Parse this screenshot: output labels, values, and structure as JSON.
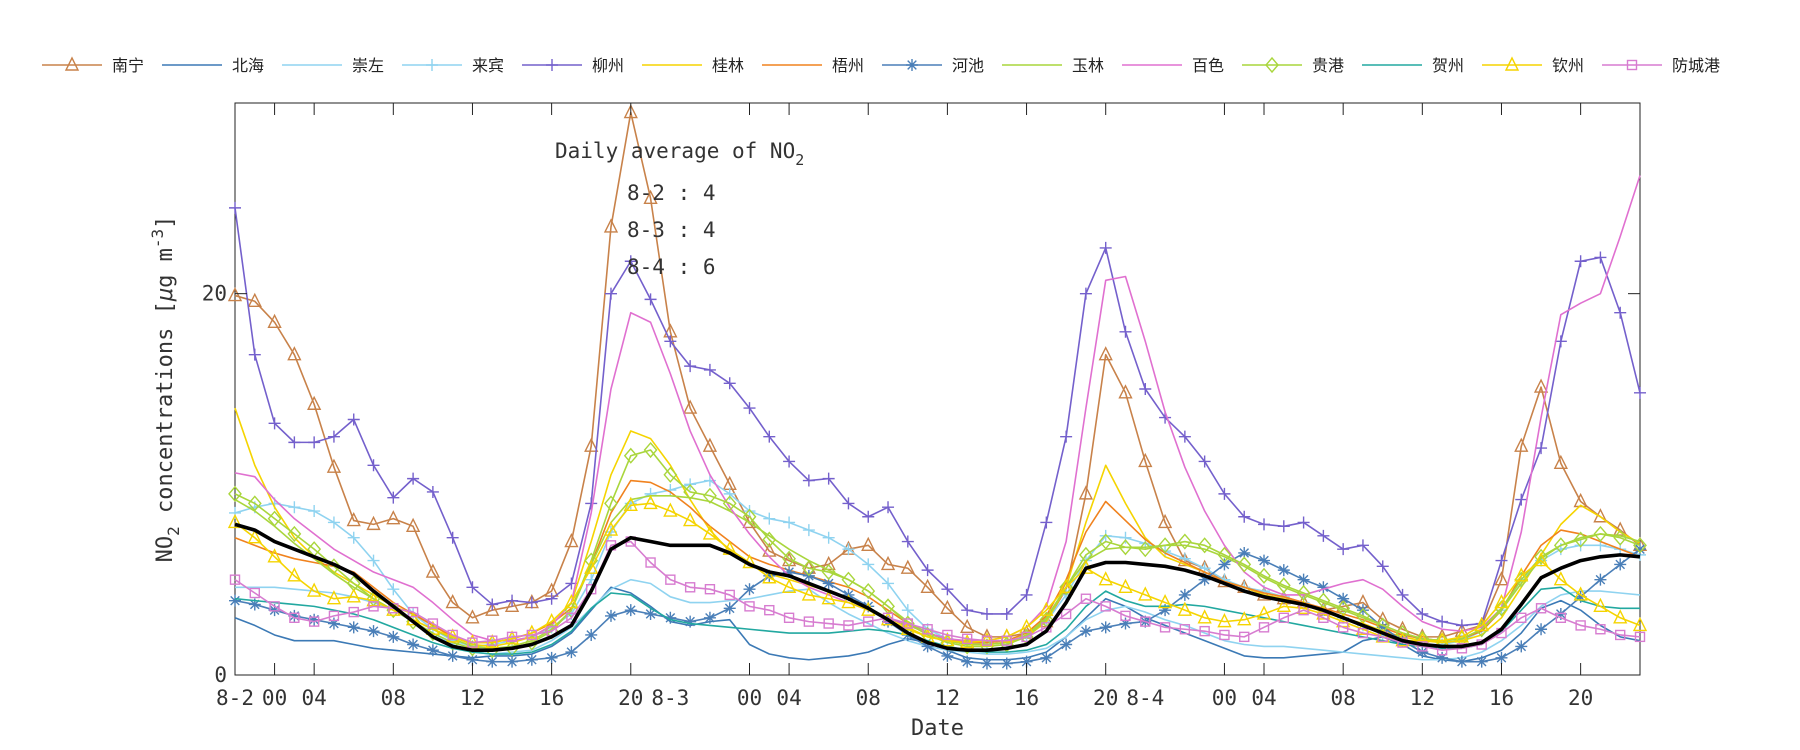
{
  "chart_data": {
    "type": "line",
    "xlabel": "Date",
    "ylabel_main": "NO",
    "ylabel_sub": "2",
    "ylabel_rest": " concentrations [",
    "ylabel_mu": "μ",
    "ylabel_unit": "g m",
    "ylabel_sup": "-3",
    "ylabel_close": "]",
    "ylim": [
      0,
      30
    ],
    "xlim": [
      0,
      71
    ],
    "yticks": [
      {
        "v": 0,
        "label": "0"
      },
      {
        "v": 20,
        "label": "20"
      }
    ],
    "xticks": [
      {
        "v": 0,
        "label": "8-2"
      },
      {
        "v": 4,
        "label": "04"
      },
      {
        "v": 8,
        "label": "08"
      },
      {
        "v": 12,
        "label": "12"
      },
      {
        "v": 16,
        "label": "16"
      },
      {
        "v": 20,
        "label": "20"
      },
      {
        "v": 28,
        "label": "04"
      },
      {
        "v": 32,
        "label": "08"
      },
      {
        "v": 36,
        "label": "12"
      },
      {
        "v": 40,
        "label": "16"
      },
      {
        "v": 44,
        "label": "20"
      },
      {
        "v": 52,
        "label": "04"
      },
      {
        "v": 56,
        "label": "08"
      },
      {
        "v": 60,
        "label": "12"
      },
      {
        "v": 64,
        "label": "16"
      },
      {
        "v": 68,
        "label": "20"
      }
    ],
    "xtick_extra": [
      {
        "v": 2,
        "label": "00"
      },
      {
        "v": 26,
        "label": "00"
      },
      {
        "v": 50,
        "label": "00"
      }
    ],
    "day_labels": [
      {
        "v": 22,
        "label": "8-3"
      },
      {
        "v": 46,
        "label": "8-4"
      }
    ],
    "annotation": {
      "title": "Daily average of NO",
      "title_sub": "2",
      "lines": [
        "8-2 : 4",
        "8-3 : 4",
        "8-4 : 6"
      ]
    },
    "series": [
      {
        "name": "南宁",
        "color": "#C8824A",
        "marker": "triangle",
        "values": [
          19.9,
          19.6,
          18.5,
          16.8,
          14.2,
          10.9,
          8.1,
          7.9,
          8.2,
          7.8,
          5.4,
          3.8,
          3.0,
          3.4,
          3.6,
          3.8,
          4.4,
          7.0,
          12.0,
          23.5,
          29.5,
          25.0,
          18.0,
          14.0,
          12.0,
          10.0,
          8.0,
          6.5,
          6.0,
          5.6,
          5.8,
          6.6,
          6.8,
          5.8,
          5.6,
          4.6,
          3.5,
          2.5,
          2.0,
          2.0,
          2.2,
          2.8,
          4.5,
          9.5,
          16.8,
          14.8,
          11.2,
          8.0,
          6.0,
          5.6,
          4.9,
          4.6,
          4.2,
          4.0,
          3.8,
          3.4,
          3.6,
          3.8,
          2.9,
          2.4,
          2.0,
          2.0,
          2.3,
          2.6,
          5.0,
          12.0,
          15.1,
          11.1,
          9.1,
          8.3,
          7.6,
          6.8
        ]
      },
      {
        "name": "北海",
        "color": "#3B79B5",
        "marker": "none",
        "values": [
          3.0,
          2.6,
          2.1,
          1.8,
          1.8,
          1.8,
          1.6,
          1.4,
          1.3,
          1.2,
          1.1,
          1.0,
          0.9,
          1.0,
          1.0,
          1.1,
          1.5,
          2.2,
          3.4,
          4.6,
          4.3,
          3.6,
          2.8,
          2.6,
          2.8,
          2.9,
          1.6,
          1.1,
          0.9,
          0.8,
          0.9,
          1.0,
          1.2,
          1.6,
          1.9,
          1.7,
          1.3,
          0.9,
          0.8,
          0.8,
          0.9,
          1.2,
          2.0,
          3.0,
          4.0,
          3.6,
          3.0,
          2.6,
          2.2,
          1.8,
          1.4,
          1.0,
          0.9,
          0.9,
          1.0,
          1.1,
          1.2,
          1.8,
          2.0,
          1.6,
          1.0,
          0.8,
          0.7,
          0.9,
          1.3,
          2.2,
          3.5,
          3.9,
          3.4,
          2.6,
          2.0,
          1.8
        ]
      },
      {
        "name": "崇左",
        "color": "#8FD3F0",
        "marker": "none",
        "values": [
          4.6,
          4.6,
          4.6,
          4.5,
          4.4,
          4.3,
          4.1,
          3.8,
          3.4,
          2.8,
          2.2,
          1.6,
          1.2,
          1.1,
          1.2,
          1.3,
          1.8,
          2.5,
          3.5,
          4.5,
          5.0,
          4.8,
          4.1,
          3.8,
          3.8,
          3.9,
          4.0,
          4.2,
          4.4,
          4.5,
          3.8,
          3.2,
          2.7,
          2.2,
          1.8,
          1.5,
          1.3,
          1.2,
          1.1,
          1.1,
          1.2,
          1.4,
          2.0,
          2.9,
          3.4,
          3.6,
          3.3,
          2.9,
          2.6,
          2.2,
          1.8,
          1.6,
          1.5,
          1.5,
          1.4,
          1.3,
          1.2,
          1.1,
          1.0,
          0.9,
          0.8,
          0.8,
          0.9,
          1.2,
          1.8,
          2.6,
          3.6,
          4.2,
          4.4,
          4.4,
          4.3,
          4.2
        ]
      },
      {
        "name": "来宾",
        "color": "#8FD3F0",
        "marker": "plus",
        "values": [
          8.5,
          8.8,
          9.0,
          8.8,
          8.6,
          8.0,
          7.2,
          6.0,
          4.5,
          3.2,
          2.4,
          1.8,
          1.5,
          1.6,
          1.8,
          2.0,
          2.5,
          3.2,
          5.0,
          7.5,
          9.0,
          9.5,
          9.7,
          10.0,
          10.2,
          9.5,
          8.6,
          8.2,
          8.0,
          7.6,
          7.2,
          6.6,
          5.8,
          4.8,
          3.4,
          2.4,
          1.9,
          1.7,
          1.6,
          1.7,
          2.0,
          2.8,
          4.2,
          6.0,
          7.3,
          7.2,
          6.9,
          6.5,
          6.1,
          5.6,
          5.0,
          4.6,
          4.4,
          4.1,
          3.8,
          3.4,
          3.0,
          2.6,
          2.1,
          1.8,
          1.6,
          1.6,
          1.8,
          2.3,
          3.4,
          5.0,
          6.0,
          6.6,
          6.8,
          6.8,
          6.6,
          6.3
        ]
      },
      {
        "name": "柳州",
        "color": "#7460CC",
        "marker": "plus",
        "values": [
          24.5,
          16.8,
          13.2,
          12.2,
          12.2,
          12.5,
          13.4,
          11.0,
          9.3,
          10.3,
          9.6,
          7.2,
          4.6,
          3.7,
          3.9,
          3.8,
          4.0,
          4.8,
          9.0,
          20.0,
          21.7,
          19.7,
          17.5,
          16.2,
          16.0,
          15.3,
          14.0,
          12.5,
          11.2,
          10.2,
          10.3,
          9.0,
          8.3,
          8.8,
          7.0,
          5.5,
          4.5,
          3.4,
          3.2,
          3.2,
          4.2,
          8.0,
          12.5,
          20.0,
          22.4,
          18.0,
          15.0,
          13.5,
          12.5,
          11.2,
          9.5,
          8.3,
          7.9,
          7.8,
          8.0,
          7.3,
          6.6,
          6.8,
          5.7,
          4.2,
          3.2,
          2.8,
          2.6,
          2.7,
          6.0,
          9.2,
          11.9,
          17.5,
          21.7,
          21.9,
          19.0,
          14.8
        ]
      },
      {
        "name": "桂林",
        "color": "#F5D400",
        "marker": "none",
        "values": [
          14.0,
          11.0,
          8.8,
          7.2,
          6.2,
          5.4,
          4.8,
          4.2,
          3.6,
          3.2,
          2.6,
          2.0,
          1.6,
          1.5,
          1.7,
          2.0,
          2.6,
          3.8,
          7.0,
          10.5,
          12.8,
          12.4,
          11.0,
          9.2,
          7.6,
          6.5,
          5.8,
          5.3,
          5.0,
          4.7,
          4.4,
          4.0,
          3.5,
          3.0,
          2.5,
          2.0,
          1.8,
          1.6,
          1.6,
          1.7,
          2.0,
          2.8,
          4.6,
          8.0,
          11.0,
          9.0,
          7.2,
          6.2,
          5.8,
          5.4,
          4.9,
          4.6,
          4.2,
          4.0,
          3.7,
          3.3,
          3.0,
          2.7,
          2.3,
          2.0,
          1.8,
          1.7,
          1.8,
          2.1,
          3.0,
          4.6,
          6.3,
          7.9,
          8.9,
          8.3,
          7.5,
          6.9
        ]
      },
      {
        "name": "梧州",
        "color": "#F0821E",
        "marker": "none",
        "values": [
          7.2,
          6.8,
          6.4,
          6.1,
          5.9,
          5.7,
          5.4,
          4.6,
          3.8,
          3.2,
          2.6,
          2.0,
          1.7,
          1.7,
          1.9,
          2.2,
          2.7,
          3.5,
          5.8,
          8.5,
          10.2,
          10.1,
          9.6,
          8.8,
          7.8,
          7.0,
          6.2,
          5.8,
          5.5,
          5.2,
          4.9,
          4.6,
          4.1,
          3.4,
          2.7,
          2.2,
          1.9,
          1.7,
          1.7,
          1.8,
          2.2,
          3.1,
          5.0,
          7.5,
          9.1,
          8.1,
          7.1,
          6.4,
          5.9,
          5.4,
          4.9,
          4.6,
          4.3,
          4.1,
          3.8,
          3.5,
          3.2,
          2.9,
          2.5,
          2.1,
          1.9,
          1.8,
          1.9,
          2.3,
          3.4,
          5.2,
          6.8,
          7.6,
          7.4,
          7.0,
          6.6,
          6.2
        ]
      },
      {
        "name": "河池",
        "color": "#4A7FB8",
        "marker": "star",
        "values": [
          3.9,
          3.7,
          3.4,
          3.1,
          2.9,
          2.7,
          2.5,
          2.3,
          2.0,
          1.6,
          1.3,
          1.0,
          0.8,
          0.7,
          0.7,
          0.8,
          0.9,
          1.2,
          2.1,
          3.1,
          3.4,
          3.2,
          3.0,
          2.8,
          3.0,
          3.5,
          4.5,
          5.2,
          5.4,
          5.2,
          4.8,
          4.2,
          3.6,
          2.8,
          2.1,
          1.5,
          1.0,
          0.7,
          0.6,
          0.6,
          0.7,
          0.9,
          1.6,
          2.3,
          2.5,
          2.7,
          2.8,
          3.4,
          4.2,
          5.0,
          5.8,
          6.4,
          6.0,
          5.5,
          5.0,
          4.6,
          4.0,
          3.4,
          2.5,
          1.8,
          1.2,
          0.9,
          0.7,
          0.7,
          0.9,
          1.5,
          2.4,
          3.2,
          4.1,
          5.0,
          5.8,
          6.6
        ]
      },
      {
        "name": "玉林",
        "color": "#A9D63C",
        "marker": "none",
        "values": [
          9.2,
          8.6,
          7.8,
          6.9,
          6.1,
          5.3,
          4.6,
          4.0,
          3.4,
          2.9,
          2.4,
          1.9,
          1.5,
          1.4,
          1.5,
          1.8,
          2.4,
          3.4,
          5.8,
          8.0,
          9.2,
          9.4,
          9.4,
          9.3,
          9.1,
          8.6,
          8.0,
          7.3,
          6.6,
          6.0,
          5.5,
          5.0,
          4.4,
          3.6,
          2.8,
          2.2,
          1.8,
          1.6,
          1.6,
          1.7,
          2.1,
          3.0,
          4.6,
          6.0,
          6.6,
          6.7,
          6.7,
          6.8,
          6.8,
          6.6,
          6.2,
          5.7,
          5.1,
          4.6,
          4.2,
          3.8,
          3.4,
          3.0,
          2.6,
          2.2,
          1.9,
          1.8,
          1.9,
          2.4,
          3.4,
          4.8,
          6.1,
          6.8,
          7.2,
          7.4,
          7.3,
          7.0
        ]
      },
      {
        "name": "百色",
        "color": "#E070D0",
        "marker": "none",
        "values": [
          10.6,
          10.4,
          9.2,
          8.2,
          7.4,
          6.6,
          6.0,
          5.4,
          5.0,
          4.6,
          3.8,
          2.9,
          2.1,
          1.8,
          1.8,
          2.0,
          2.6,
          3.8,
          8.5,
          15.0,
          19.0,
          18.5,
          15.8,
          12.8,
          10.5,
          8.8,
          7.4,
          6.2,
          5.2,
          4.6,
          4.2,
          3.8,
          3.4,
          3.0,
          2.6,
          2.2,
          1.9,
          1.8,
          1.8,
          2.0,
          2.5,
          3.6,
          7.0,
          14.0,
          20.7,
          20.9,
          17.5,
          13.8,
          10.9,
          8.6,
          6.8,
          5.4,
          4.6,
          4.2,
          4.2,
          4.5,
          4.8,
          5.0,
          4.5,
          3.6,
          2.8,
          2.4,
          2.3,
          2.5,
          3.5,
          7.5,
          13.5,
          18.9,
          19.5,
          20.0,
          23.0,
          26.2
        ]
      },
      {
        "name": "贵港",
        "color": "#A9D63C",
        "marker": "diamond",
        "values": [
          9.5,
          9.0,
          8.2,
          7.4,
          6.6,
          5.7,
          4.8,
          4.0,
          3.4,
          2.8,
          2.2,
          1.7,
          1.4,
          1.3,
          1.4,
          1.7,
          2.3,
          3.4,
          6.0,
          9.0,
          11.5,
          11.8,
          10.5,
          9.6,
          9.4,
          9.0,
          8.3,
          7.1,
          6.1,
          5.6,
          5.4,
          5.0,
          4.4,
          3.6,
          2.7,
          2.1,
          1.7,
          1.5,
          1.5,
          1.6,
          2.0,
          2.9,
          4.6,
          6.3,
          7.0,
          6.7,
          6.6,
          6.8,
          7.0,
          6.8,
          6.3,
          5.8,
          5.2,
          4.7,
          4.3,
          3.9,
          3.5,
          3.1,
          2.6,
          2.2,
          1.9,
          1.8,
          1.9,
          2.4,
          3.5,
          5.0,
          6.2,
          6.8,
          7.1,
          7.4,
          7.2,
          6.8
        ]
      },
      {
        "name": "贺州",
        "color": "#22A8A0",
        "marker": "none",
        "values": [
          4.0,
          3.9,
          3.8,
          3.7,
          3.6,
          3.4,
          3.2,
          2.9,
          2.5,
          2.1,
          1.7,
          1.4,
          1.2,
          1.1,
          1.1,
          1.2,
          1.6,
          2.3,
          3.5,
          4.3,
          4.2,
          3.5,
          2.9,
          2.7,
          2.6,
          2.5,
          2.4,
          2.3,
          2.2,
          2.2,
          2.2,
          2.3,
          2.4,
          2.3,
          2.1,
          1.8,
          1.5,
          1.3,
          1.2,
          1.2,
          1.3,
          1.6,
          2.4,
          3.6,
          4.4,
          3.9,
          3.6,
          3.6,
          3.7,
          3.6,
          3.4,
          3.2,
          3.0,
          2.8,
          2.6,
          2.4,
          2.2,
          2.0,
          1.8,
          1.6,
          1.5,
          1.4,
          1.4,
          1.6,
          2.3,
          3.4,
          4.5,
          4.6,
          3.9,
          3.6,
          3.5,
          3.5
        ]
      },
      {
        "name": "钦州",
        "color": "#F5D400",
        "marker": "triangle",
        "values": [
          8.0,
          7.2,
          6.2,
          5.2,
          4.4,
          4.0,
          4.1,
          3.9,
          3.4,
          2.9,
          2.4,
          2.0,
          1.7,
          1.7,
          1.9,
          2.2,
          2.8,
          3.8,
          5.6,
          7.6,
          8.9,
          9.0,
          8.6,
          8.1,
          7.4,
          6.6,
          5.9,
          5.1,
          4.6,
          4.2,
          4.0,
          3.8,
          3.4,
          2.9,
          2.4,
          2.0,
          1.8,
          1.7,
          1.8,
          2.0,
          2.5,
          3.4,
          4.6,
          5.6,
          5.0,
          4.6,
          4.2,
          3.8,
          3.4,
          3.0,
          2.8,
          2.9,
          3.2,
          3.6,
          3.5,
          3.2,
          2.8,
          2.4,
          2.0,
          1.8,
          1.8,
          1.8,
          2.0,
          2.6,
          3.8,
          5.2,
          6.0,
          5.0,
          4.2,
          3.6,
          3.0,
          2.6
        ]
      },
      {
        "name": "防城港",
        "color": "#D77CD0",
        "marker": "square",
        "values": [
          5.0,
          4.3,
          3.6,
          3.0,
          2.8,
          3.1,
          3.3,
          3.6,
          3.5,
          3.3,
          2.7,
          2.1,
          1.7,
          1.8,
          2.0,
          2.1,
          2.3,
          3.0,
          4.5,
          6.8,
          7.0,
          5.9,
          5.0,
          4.6,
          4.5,
          4.2,
          3.6,
          3.4,
          3.0,
          2.8,
          2.7,
          2.6,
          2.8,
          3.0,
          2.7,
          2.4,
          2.1,
          1.9,
          1.8,
          1.8,
          2.0,
          2.5,
          3.2,
          4.0,
          3.6,
          3.1,
          2.8,
          2.5,
          2.4,
          2.3,
          2.1,
          2.0,
          2.5,
          3.0,
          3.4,
          3.0,
          2.5,
          2.2,
          2.0,
          1.7,
          1.5,
          1.3,
          1.4,
          1.6,
          2.2,
          3.0,
          3.5,
          3.0,
          2.6,
          2.4,
          2.1,
          2.0
        ]
      }
    ],
    "average": {
      "color": "#000000",
      "values": [
        7.9,
        7.6,
        7.0,
        6.6,
        6.2,
        5.8,
        5.3,
        4.4,
        3.6,
        2.8,
        2.0,
        1.5,
        1.3,
        1.3,
        1.4,
        1.6,
        2.0,
        2.6,
        4.4,
        6.6,
        7.2,
        7.0,
        6.8,
        6.8,
        6.8,
        6.4,
        5.8,
        5.4,
        5.2,
        4.8,
        4.4,
        4.0,
        3.5,
        2.9,
        2.2,
        1.7,
        1.4,
        1.3,
        1.3,
        1.4,
        1.6,
        2.3,
        3.8,
        5.6,
        5.9,
        5.9,
        5.8,
        5.7,
        5.5,
        5.2,
        4.8,
        4.4,
        4.1,
        3.9,
        3.7,
        3.4,
        3.0,
        2.6,
        2.2,
        1.8,
        1.6,
        1.5,
        1.5,
        1.7,
        2.4,
        3.7,
        5.1,
        5.6,
        6.0,
        6.2,
        6.3,
        6.2
      ]
    }
  }
}
